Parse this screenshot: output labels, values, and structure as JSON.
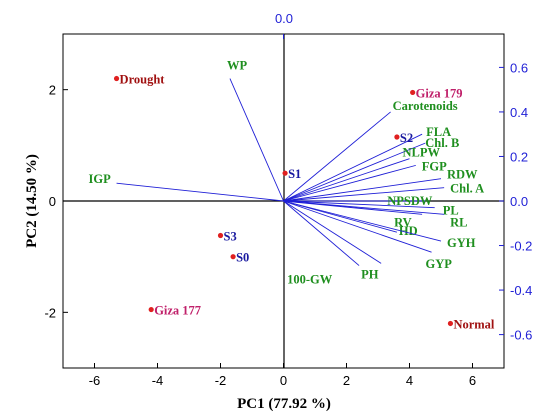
{
  "chart_data": {
    "type": "scatter",
    "title": "",
    "xlabel": "PC1 (77.92 %)",
    "ylabel": "PC2 (14.50 %)",
    "xlim": [
      -7,
      7
    ],
    "ylim": [
      -3,
      3
    ],
    "secondary_xlim": [
      -0.7,
      0.7
    ],
    "secondary_ylim": [
      -0.75,
      0.75
    ],
    "x_ticks": [
      -6,
      -4,
      -2,
      0,
      2,
      4,
      6
    ],
    "y_ticks": [
      -2,
      0,
      2
    ],
    "top_ticks": [
      "0.0"
    ],
    "right_ticks": [
      0.6,
      0.4,
      0.2,
      0.0,
      -0.2,
      -0.4,
      -0.6
    ],
    "grid": false,
    "colors": {
      "loading": "#1f1fd6",
      "variable_label": "#1f8f1f",
      "score_point": "#e02020",
      "treatment_label": "#a01010",
      "genotype_label": "#c0206a",
      "sowing_label": "#1a1aa0",
      "right_top_axis": "#1f1fd6"
    },
    "loadings": [
      {
        "label": "WP",
        "x": -0.17,
        "y": 0.55
      },
      {
        "label": "IGP",
        "x": -0.53,
        "y": 0.08
      },
      {
        "label": "Carotenoids",
        "x": 0.34,
        "y": 0.4
      },
      {
        "label": "FLA",
        "x": 0.44,
        "y": 0.3
      },
      {
        "label": "Chl. B",
        "x": 0.45,
        "y": 0.26
      },
      {
        "label": "NLPW",
        "x": 0.4,
        "y": 0.19
      },
      {
        "label": "FGP",
        "x": 0.42,
        "y": 0.16
      },
      {
        "label": "RDW",
        "x": 0.5,
        "y": 0.1
      },
      {
        "label": "Chl. A",
        "x": 0.51,
        "y": 0.06
      },
      {
        "label": "NPSDW",
        "x": 0.45,
        "y": 0.0
      },
      {
        "label": "PL",
        "x": 0.48,
        "y": -0.03
      },
      {
        "label": "RV",
        "x": 0.44,
        "y": -0.06
      },
      {
        "label": "RL",
        "x": 0.51,
        "y": -0.06
      },
      {
        "label": "HD",
        "x": 0.36,
        "y": -0.14
      },
      {
        "label": "GYH",
        "x": 0.5,
        "y": -0.18
      },
      {
        "label": "GYP",
        "x": 0.47,
        "y": -0.23
      },
      {
        "label": "PH",
        "x": 0.31,
        "y": -0.28
      },
      {
        "label": "100-GW",
        "x": 0.24,
        "y": -0.29
      }
    ],
    "scores": [
      {
        "label": "Drought",
        "x": -5.3,
        "y": 2.2,
        "group": "treatment"
      },
      {
        "label": "Normal",
        "x": 5.3,
        "y": -2.2,
        "group": "treatment"
      },
      {
        "label": "Giza 179",
        "x": 4.1,
        "y": 1.95,
        "group": "genotype"
      },
      {
        "label": "Giza 177",
        "x": -4.2,
        "y": -1.95,
        "group": "genotype"
      },
      {
        "label": "S1",
        "x": 0.05,
        "y": 0.5,
        "group": "sowing"
      },
      {
        "label": "S2",
        "x": 3.6,
        "y": 1.15,
        "group": "sowing"
      },
      {
        "label": "S3",
        "x": -2.0,
        "y": -0.62,
        "group": "sowing"
      },
      {
        "label": "S0",
        "x": -1.6,
        "y": -1.0,
        "group": "sowing"
      }
    ]
  }
}
